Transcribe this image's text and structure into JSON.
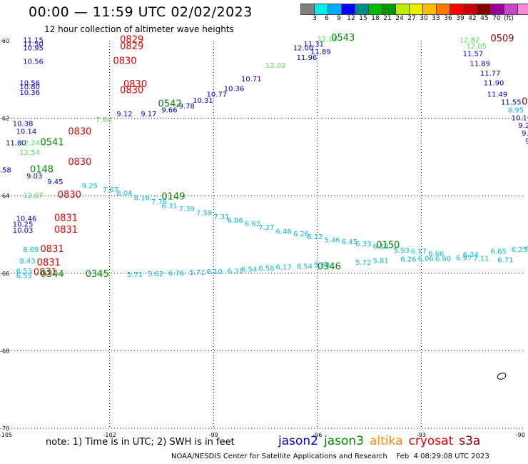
{
  "title": "00:00 — 11:59 UTC 02/02/2023",
  "subtitle": "12 hour collection of altimeter wave heights",
  "colorbar": {
    "colors": [
      "#7f7f7f",
      "#00eeee",
      "#00aaff",
      "#0000ff",
      "#008b8b",
      "#00bb00",
      "#009900",
      "#bbee00",
      "#eeee00",
      "#ffbb00",
      "#ff7700",
      "#ff0000",
      "#cc0000",
      "#880000",
      "#990099",
      "#cc44cc",
      "#ff88dd",
      "#000000"
    ],
    "labels": [
      "3",
      "6",
      "9",
      "12",
      "15",
      "18",
      "21",
      "24",
      "27",
      "30",
      "33",
      "36",
      "39",
      "42",
      "45",
      "70",
      "(ft)"
    ]
  },
  "axes": {
    "lat_labels": [
      "-60",
      "-62",
      "-64",
      "-66",
      "-68",
      "-70"
    ],
    "lon_labels": [
      "-105",
      "-102",
      "-99",
      "-96",
      "-93",
      "-90"
    ]
  },
  "note": "note: 1) Time is in UTC; 2) SWH is in feet",
  "legend": [
    {
      "name": "jason2",
      "color": "#0000cc"
    },
    {
      "name": "jason3",
      "color": "#008800"
    },
    {
      "name": "altika",
      "color": "#ff8800"
    },
    {
      "name": "cryosat",
      "color": "#dd0000"
    },
    {
      "name": "s3a",
      "color": "#880000"
    }
  ],
  "credit": "NOAA/NESDIS Center for Satellite Applications and Research    Feb  4 08:29:08 UTC 2023",
  "tracks": [
    {
      "color": "#dd0000",
      "items": [
        {
          "t": "0829",
          "lon": -101.7,
          "lat": -60.05,
          "ts": true
        },
        {
          "t": "0829",
          "lon": -101.7,
          "lat": -60.22,
          "ts": true
        },
        {
          "t": "0830",
          "lon": -101.9,
          "lat": -60.6,
          "ts": true
        },
        {
          "t": "0830",
          "lon": -101.6,
          "lat": -61.2,
          "ts": true
        },
        {
          "t": "0830",
          "lon": -101.7,
          "lat": -61.35,
          "ts": true
        },
        {
          "t": "0830",
          "lon": -103.2,
          "lat": -62.42,
          "ts": true
        },
        {
          "t": "0830",
          "lon": -103.2,
          "lat": -63.2,
          "ts": true
        },
        {
          "t": "0830",
          "lon": -103.5,
          "lat": -64.05,
          "ts": true
        },
        {
          "t": "0831",
          "lon": -103.6,
          "lat": -64.65,
          "ts": true
        },
        {
          "t": "0831",
          "lon": -103.6,
          "lat": -64.95,
          "ts": true
        },
        {
          "t": "0831",
          "lon": -104.0,
          "lat": -65.45,
          "ts": true
        },
        {
          "t": "0831",
          "lon": -104.1,
          "lat": -65.8,
          "ts": true
        },
        {
          "t": "0831",
          "lon": -104.2,
          "lat": -66.05,
          "ts": true
        }
      ]
    },
    {
      "color": "#0000cc",
      "items": [
        {
          "t": "11.15",
          "lon": -104.5,
          "lat": -60.05
        },
        {
          "t": "11.50",
          "lon": -104.5,
          "lat": -60.15
        },
        {
          "t": "10.95",
          "lon": -104.5,
          "lat": -60.25
        },
        {
          "t": "10.56",
          "lon": -104.5,
          "lat": -60.6
        },
        {
          "t": "10.56",
          "lon": -104.6,
          "lat": -61.15
        },
        {
          "t": "10.80",
          "lon": -104.6,
          "lat": -61.25
        },
        {
          "t": "10.36",
          "lon": -104.6,
          "lat": -61.4
        },
        {
          "t": "9.12",
          "lon": -101.8,
          "lat": -61.95
        },
        {
          "t": "9.17",
          "lon": -101.1,
          "lat": -61.95
        },
        {
          "t": "9.66",
          "lon": -100.5,
          "lat": -61.85
        },
        {
          "t": "9.78",
          "lon": -100.0,
          "lat": -61.75
        },
        {
          "t": "10.31",
          "lon": -99.6,
          "lat": -61.6
        },
        {
          "t": "10.77",
          "lon": -99.2,
          "lat": -61.45
        },
        {
          "t": "10.36",
          "lon": -98.7,
          "lat": -61.3
        },
        {
          "t": "10.71",
          "lon": -98.2,
          "lat": -61.05
        },
        {
          "t": "11.96",
          "lon": -96.6,
          "lat": -60.5
        },
        {
          "t": "11.89",
          "lon": -96.2,
          "lat": -60.35
        },
        {
          "t": "12.00",
          "lon": -96.7,
          "lat": -60.25
        },
        {
          "t": "11.31",
          "lon": -96.4,
          "lat": -60.15
        },
        {
          "t": "10.38",
          "lon": -104.8,
          "lat": -62.2
        },
        {
          "t": "10.14",
          "lon": -104.7,
          "lat": -62.4
        },
        {
          "t": "11.80",
          "lon": -105.0,
          "lat": -62.7
        },
        {
          "t": "9.58",
          "lon": -105.3,
          "lat": -63.4
        },
        {
          "t": "9.03",
          "lon": -104.4,
          "lat": -63.55
        },
        {
          "t": "9.45",
          "lon": -103.8,
          "lat": -63.7
        },
        {
          "t": "10.46",
          "lon": -104.7,
          "lat": -64.65
        },
        {
          "t": "10.25",
          "lon": -104.8,
          "lat": -64.8
        },
        {
          "t": "10.03",
          "lon": -104.8,
          "lat": -64.95
        },
        {
          "t": "11.57",
          "lon": -91.8,
          "lat": -60.4
        },
        {
          "t": "11.89",
          "lon": -91.6,
          "lat": -60.65
        },
        {
          "t": "11.77",
          "lon": -91.3,
          "lat": -60.9
        },
        {
          "t": "11.90",
          "lon": -91.2,
          "lat": -61.15
        },
        {
          "t": "11.49",
          "lon": -91.1,
          "lat": -61.45
        },
        {
          "t": "11.55",
          "lon": -90.7,
          "lat": -61.65
        },
        {
          "t": "10.10",
          "lon": -90.4,
          "lat": -62.05
        },
        {
          "t": "9.23",
          "lon": -90.2,
          "lat": -62.25
        },
        {
          "t": "9.3",
          "lon": -90.1,
          "lat": -62.45
        },
        {
          "t": "9.",
          "lon": -90.0,
          "lat": -62.65
        }
      ]
    },
    {
      "color": "#00bbdd",
      "items": [
        {
          "t": "9.25",
          "lon": -102.8,
          "lat": -63.8
        },
        {
          "t": "7.67",
          "lon": -102.2,
          "lat": -63.9
        },
        {
          "t": "8.04",
          "lon": -101.8,
          "lat": -64.0
        },
        {
          "t": "8.16",
          "lon": -101.3,
          "lat": -64.12
        },
        {
          "t": "7.76",
          "lon": -100.8,
          "lat": -64.22
        },
        {
          "t": "6.31",
          "lon": -100.5,
          "lat": -64.32
        },
        {
          "t": "7.39",
          "lon": -100.0,
          "lat": -64.4
        },
        {
          "t": "7.59",
          "lon": -99.5,
          "lat": -64.5
        },
        {
          "t": "7.31",
          "lon": -99.0,
          "lat": -64.6
        },
        {
          "t": "6.86",
          "lon": -98.6,
          "lat": -64.7
        },
        {
          "t": "6.62",
          "lon": -98.1,
          "lat": -64.78
        },
        {
          "t": "7.27",
          "lon": -97.7,
          "lat": -64.88
        },
        {
          "t": "6.46",
          "lon": -97.2,
          "lat": -64.98
        },
        {
          "t": "6.26",
          "lon": -96.7,
          "lat": -65.05
        },
        {
          "t": "6.12",
          "lon": -96.3,
          "lat": -65.12
        },
        {
          "t": "5.46",
          "lon": -95.8,
          "lat": -65.2
        },
        {
          "t": "6.45",
          "lon": -95.3,
          "lat": -65.25
        },
        {
          "t": "6.33",
          "lon": -94.9,
          "lat": -65.3
        },
        {
          "t": "6.10",
          "lon": -94.4,
          "lat": -65.37
        },
        {
          "t": "5.93",
          "lon": -93.8,
          "lat": -65.47
        },
        {
          "t": "6.17",
          "lon": -93.3,
          "lat": -65.5
        },
        {
          "t": "6.66",
          "lon": -92.8,
          "lat": -65.55
        },
        {
          "t": "6.34",
          "lon": -91.8,
          "lat": -65.58
        },
        {
          "t": "6.65",
          "lon": -91.0,
          "lat": -65.5
        },
        {
          "t": "6.25",
          "lon": -90.4,
          "lat": -65.45
        },
        {
          "t": "6",
          "lon": -90.0,
          "lat": -65.42
        },
        {
          "t": "6.60",
          "lon": -92.6,
          "lat": -65.68
        },
        {
          "t": "6.97",
          "lon": -92.0,
          "lat": -65.66
        },
        {
          "t": "7.11",
          "lon": -91.5,
          "lat": -65.68
        },
        {
          "t": "6.71",
          "lon": -90.8,
          "lat": -65.72
        },
        {
          "t": "6.26",
          "lon": -93.6,
          "lat": -65.7
        },
        {
          "t": "6.06",
          "lon": -93.1,
          "lat": -65.68
        },
        {
          "t": "5.81",
          "lon": -94.4,
          "lat": -65.74
        },
        {
          "t": "5.72",
          "lon": -94.9,
          "lat": -65.78
        },
        {
          "t": "5.60",
          "lon": -96.1,
          "lat": -65.85
        },
        {
          "t": "8.54",
          "lon": -96.6,
          "lat": -65.88
        },
        {
          "t": "6.17",
          "lon": -97.2,
          "lat": -65.9
        },
        {
          "t": "6.58",
          "lon": -97.7,
          "lat": -65.93
        },
        {
          "t": "6.54",
          "lon": -98.2,
          "lat": -65.96
        },
        {
          "t": "6.31",
          "lon": -98.6,
          "lat": -66.0
        },
        {
          "t": "6.10",
          "lon": -99.2,
          "lat": -66.02
        },
        {
          "t": "5.71",
          "lon": -99.7,
          "lat": -66.04
        },
        {
          "t": "6.76",
          "lon": -100.3,
          "lat": -66.06
        },
        {
          "t": "5.62",
          "lon": -100.9,
          "lat": -66.08
        },
        {
          "t": "5.71",
          "lon": -101.5,
          "lat": -66.1
        },
        {
          "t": "8.69",
          "lon": -104.5,
          "lat": -65.45
        },
        {
          "t": "8.43",
          "lon": -104.6,
          "lat": -65.75
        },
        {
          "t": "6.53",
          "lon": -104.7,
          "lat": -66.0
        },
        {
          "t": "6.55",
          "lon": -104.7,
          "lat": -66.12
        },
        {
          "t": "8.95",
          "lon": -90.5,
          "lat": -61.85
        }
      ]
    },
    {
      "color": "#55dd55",
      "items": [
        {
          "t": "12.09",
          "lon": -96.0,
          "lat": -60.02
        },
        {
          "t": "12.03",
          "lon": -97.5,
          "lat": -60.7
        },
        {
          "t": "7.64",
          "lon": -102.4,
          "lat": -62.1
        },
        {
          "t": "12.24",
          "lon": -104.6,
          "lat": -62.7
        },
        {
          "t": "12.54",
          "lon": -104.6,
          "lat": -62.95
        },
        {
          "t": "12.07",
          "lon": -104.5,
          "lat": -64.05
        },
        {
          "t": "12.82",
          "lon": -91.9,
          "lat": -60.05
        },
        {
          "t": "12.05",
          "lon": -91.7,
          "lat": -60.2
        }
      ]
    },
    {
      "color": "#008800",
      "items": [
        {
          "t": "0543",
          "lon": -95.6,
          "lat": -60.0,
          "ts": true
        },
        {
          "t": "0542",
          "lon": -100.6,
          "lat": -61.7,
          "ts": true
        },
        {
          "t": "0541",
          "lon": -104.0,
          "lat": -62.7,
          "ts": true
        },
        {
          "t": "0148",
          "lon": -104.3,
          "lat": -63.4,
          "ts": true
        },
        {
          "t": "0149",
          "lon": -100.5,
          "lat": -64.1,
          "ts": true
        },
        {
          "t": "0150",
          "lon": -94.3,
          "lat": -65.35,
          "ts": true
        },
        {
          "t": "0346",
          "lon": -96.0,
          "lat": -65.9,
          "ts": true
        },
        {
          "t": "0344",
          "lon": -104.0,
          "lat": -66.1,
          "ts": true
        },
        {
          "t": "0345",
          "lon": -102.7,
          "lat": -66.1,
          "ts": true
        }
      ]
    },
    {
      "color": "#880000",
      "items": [
        {
          "t": "0509",
          "lon": -91.0,
          "lat": -60.02,
          "ts": true
        },
        {
          "t": "05",
          "lon": -90.1,
          "lat": -61.65,
          "ts": true
        }
      ]
    }
  ]
}
